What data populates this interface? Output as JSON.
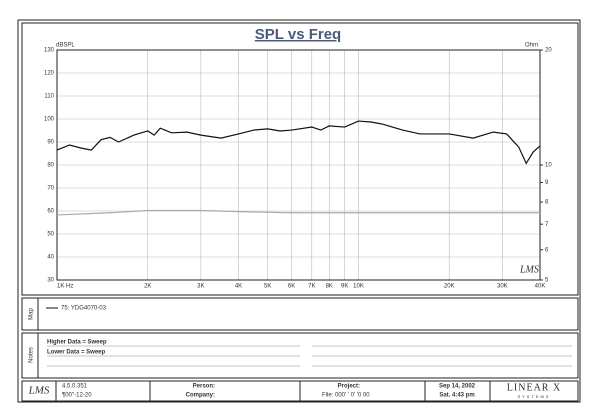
{
  "chart_data": {
    "type": "line",
    "title": "SPL vs Freq",
    "y_label": "dBSPL",
    "y2_label": "Ohm",
    "watermark": "LMS",
    "xscale": "log",
    "y2scale": "log",
    "grid": true,
    "xlim": [
      1000,
      40000
    ],
    "xticks": [
      {
        "value": 1000,
        "label": "1K Hz"
      },
      {
        "value": 2000,
        "label": "2K"
      },
      {
        "value": 3000,
        "label": "3K"
      },
      {
        "value": 4000,
        "label": "4K"
      },
      {
        "value": 5000,
        "label": "5K"
      },
      {
        "value": 6000,
        "label": "6K"
      },
      {
        "value": 7000,
        "label": "7K"
      },
      {
        "value": 8000,
        "label": "8K"
      },
      {
        "value": 9000,
        "label": "9K"
      },
      {
        "value": 10000,
        "label": "10K"
      },
      {
        "value": 20000,
        "label": "20K"
      },
      {
        "value": 30000,
        "label": "30K"
      },
      {
        "value": 40000,
        "label": "40K"
      }
    ],
    "ylim": [
      30,
      130
    ],
    "yticks": [
      30,
      40,
      50,
      60,
      70,
      80,
      90,
      100,
      110,
      120,
      130
    ],
    "y2lim": [
      5,
      20
    ],
    "y2ticks": [
      5,
      6,
      7,
      8,
      9,
      10,
      20
    ],
    "series": [
      {
        "name": "75: YDG4070-03",
        "color": "#111111",
        "x": [
          1000,
          1100,
          1200,
          1300,
          1400,
          1500,
          1600,
          1800,
          2000,
          2100,
          2200,
          2400,
          2700,
          3000,
          3500,
          4000,
          4500,
          5000,
          5500,
          6000,
          7000,
          7500,
          8000,
          9000,
          10000,
          11000,
          12000,
          14000,
          16000,
          20000,
          24000,
          28000,
          31000,
          34000,
          36000,
          38000,
          40000
        ],
        "values": [
          86.5,
          88.7,
          87.4,
          86.5,
          91,
          92,
          90,
          93,
          94.8,
          93,
          96,
          94,
          94.3,
          93,
          91.7,
          93.5,
          95.2,
          95.7,
          94.8,
          95.2,
          96.5,
          95.2,
          97,
          96.5,
          99.1,
          98.7,
          97.8,
          95.2,
          93.5,
          93.5,
          91.7,
          94.3,
          93.5,
          87.8,
          80.7,
          85.7,
          88.3
        ]
      },
      {
        "color": "#aaaaaa",
        "axis": "y2",
        "x": [
          1000,
          1500,
          2000,
          3000,
          4000,
          6000,
          10000,
          20000,
          40000
        ],
        "values": [
          7.4,
          7.5,
          7.6,
          7.6,
          7.55,
          7.5,
          7.5,
          7.5,
          7.5
        ]
      }
    ]
  },
  "map": {
    "label": "Map"
  },
  "notes": {
    "label": "Notes",
    "lines": [
      "Higher Data = Sweep",
      "Lower Data = Sweep"
    ]
  },
  "footer": {
    "logo": "LMS",
    "version": "4.5.0.351",
    "date_code": "¶00''-12-20",
    "person": "Person:",
    "company": "Company:",
    "project": "Project:",
    "file": "File: 000' ' 0' '0 00",
    "date": "Sep 14, 2002",
    "time": "Sat. 4:43 pm",
    "brand": "LINEAR X",
    "brand_sub": "SYSTEMS"
  }
}
